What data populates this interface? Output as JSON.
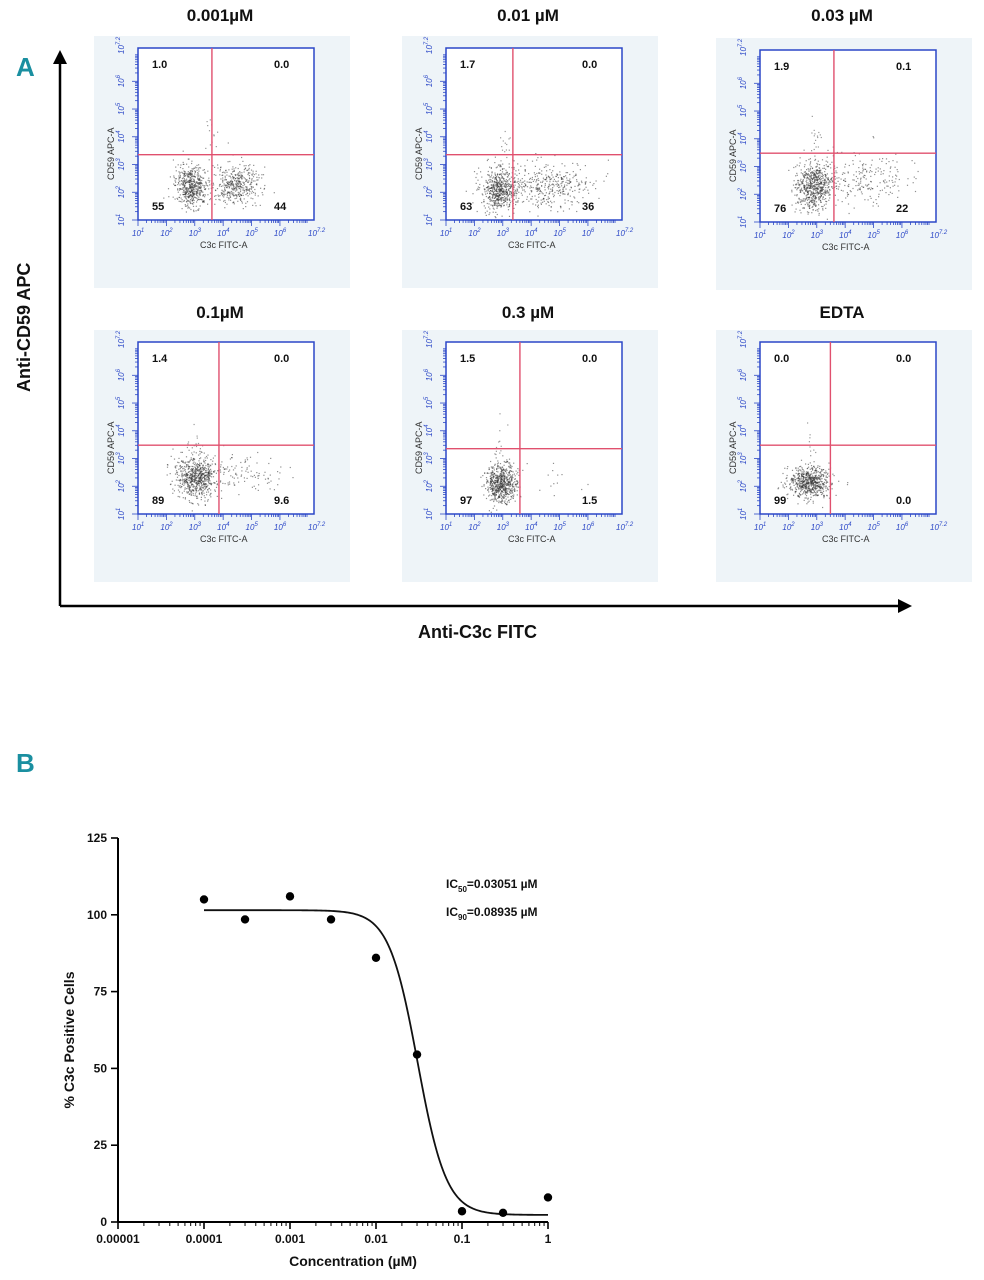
{
  "panel_a_label": "A",
  "panel_b_label": "B",
  "big_axes": {
    "y_label": "Anti-CD59 APC",
    "x_label": "Anti-C3c FITC"
  },
  "facs": {
    "x_axis_label": "C3c FITC-A",
    "y_axis_label": "CD59 APC-A",
    "tick_labels": [
      "10^1",
      "10^2",
      "10^3",
      "10^4",
      "10^5",
      "10^6",
      "10^7.2"
    ],
    "colors": {
      "frame": "#2b47c7",
      "gate": "#e0506e",
      "events": "#333333",
      "panel_bg": "#eef4f8"
    },
    "panels": [
      {
        "title": "0.001µM",
        "ul": "1.0",
        "ur": "0.0",
        "ll": "55",
        "lr": "44"
      },
      {
        "title": "0.01 µM",
        "ul": "1.7",
        "ur": "0.0",
        "ll": "63",
        "lr": "36"
      },
      {
        "title": "0.03 µM",
        "ul": "1.9",
        "ur": "0.1",
        "ll": "76",
        "lr": "22"
      },
      {
        "title": "0.1µM",
        "ul": "1.4",
        "ur": "0.0",
        "ll": "89",
        "lr": "9.6"
      },
      {
        "title": "0.3 µM",
        "ul": "1.5",
        "ur": "0.0",
        "ll": "97",
        "lr": "1.5"
      },
      {
        "title": "EDTA",
        "ul": "0.0",
        "ur": "0.0",
        "ll": "99",
        "lr": "0.0"
      }
    ]
  },
  "chart_data": {
    "type": "scatter",
    "title": "",
    "xlabel": "Concentration (µM)",
    "ylabel": "% C3c Positive Cells",
    "x_scale": "log",
    "xlim": [
      1e-05,
      1
    ],
    "ylim": [
      0,
      125
    ],
    "x_tick_labels": [
      "0.00001",
      "0.0001",
      "0.001",
      "0.01",
      "0.1",
      "1"
    ],
    "y_ticks": [
      0,
      25,
      50,
      75,
      100,
      125
    ],
    "points": [
      {
        "x": 0.0001,
        "y": 105
      },
      {
        "x": 0.0003,
        "y": 98.5
      },
      {
        "x": 0.001,
        "y": 106
      },
      {
        "x": 0.003,
        "y": 98.5
      },
      {
        "x": 0.01,
        "y": 86
      },
      {
        "x": 0.03,
        "y": 54.5
      },
      {
        "x": 0.1,
        "y": 3.5
      },
      {
        "x": 0.3,
        "y": 3
      },
      {
        "x": 1,
        "y": 8
      }
    ],
    "fit": {
      "top": 101.5,
      "bottom": 2.3,
      "ic50": 0.03051,
      "hill": 2.6,
      "x_from": 0.0001,
      "x_to": 1
    },
    "annotations": [
      {
        "prefix": "IC",
        "sub": "50",
        "text": "=0.03051 µM"
      },
      {
        "prefix": "IC",
        "sub": "90",
        "text": "=0.08935 µM"
      }
    ]
  }
}
